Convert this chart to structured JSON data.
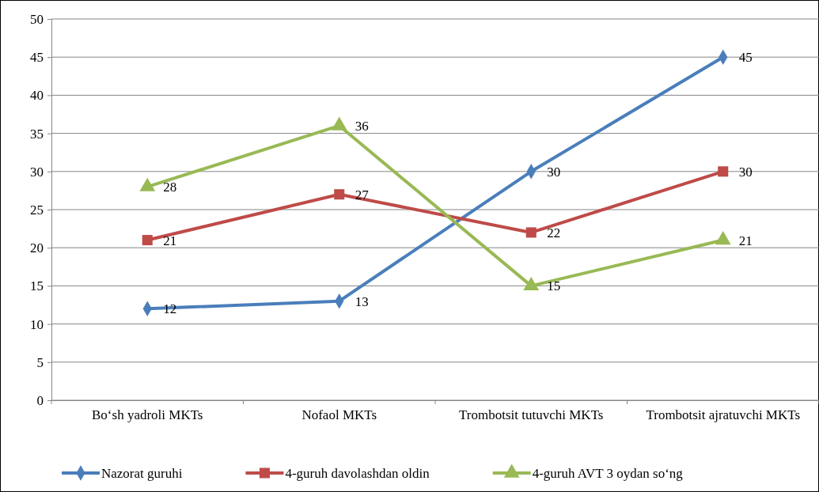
{
  "chart_data": {
    "type": "line",
    "categories": [
      "Bo‘sh yadroli MKTs",
      "Nofaol MKTs",
      "Trombotsit tutuvchi MKTs",
      "Trombotsit ajratuvchi MKTs"
    ],
    "series": [
      {
        "name": "Nazorat guruhi",
        "color": "#4a7ebb",
        "marker": "diamond",
        "values": [
          12,
          13,
          30,
          45
        ]
      },
      {
        "name": "4-guruh davolashdan oldin",
        "color": "#be4b48",
        "marker": "square",
        "values": [
          21,
          27,
          22,
          30
        ]
      },
      {
        "name": "4-guruh AVT 3 oydan so‘ng",
        "color": "#98b954",
        "marker": "triangle",
        "values": [
          28,
          36,
          15,
          21
        ]
      }
    ],
    "ylim": [
      0,
      50
    ],
    "yticks": [
      0,
      5,
      10,
      15,
      20,
      25,
      30,
      35,
      40,
      45,
      50
    ],
    "grid": "y",
    "legend": "bottom",
    "data_labels": true,
    "line_style": "solid"
  }
}
